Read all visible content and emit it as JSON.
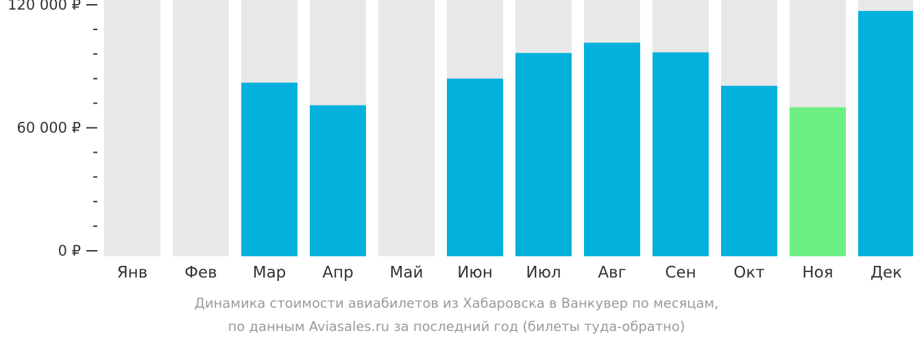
{
  "chart_data": {
    "type": "bar",
    "categories": [
      "Янв",
      "Фев",
      "Мар",
      "Апр",
      "Май",
      "Июн",
      "Июл",
      "Авг",
      "Сен",
      "Окт",
      "Ноя",
      "Дек"
    ],
    "values": [
      null,
      null,
      82000,
      71000,
      null,
      84000,
      96500,
      101500,
      96800,
      80500,
      70000,
      117000
    ],
    "highlight_index": 10,
    "ylim": [
      0,
      120000
    ],
    "yticks": [
      {
        "value": 0,
        "label": "0 ₽"
      },
      {
        "value": 60000,
        "label": "60 000 ₽"
      },
      {
        "value": 120000,
        "label": "120 000 ₽"
      }
    ],
    "minor_tick_step": 12000,
    "grid": false,
    "colors": {
      "bar": "#03b1dc",
      "highlight": "#6bef83",
      "background_bar": "#e8e8e8"
    }
  },
  "caption": {
    "line1": "Динамика стоимости авиабилетов из Хабаровска в Ванкувер по месяцам,",
    "line2": "по данным Aviasales.ru за последний год (билеты туда-обратно)"
  }
}
